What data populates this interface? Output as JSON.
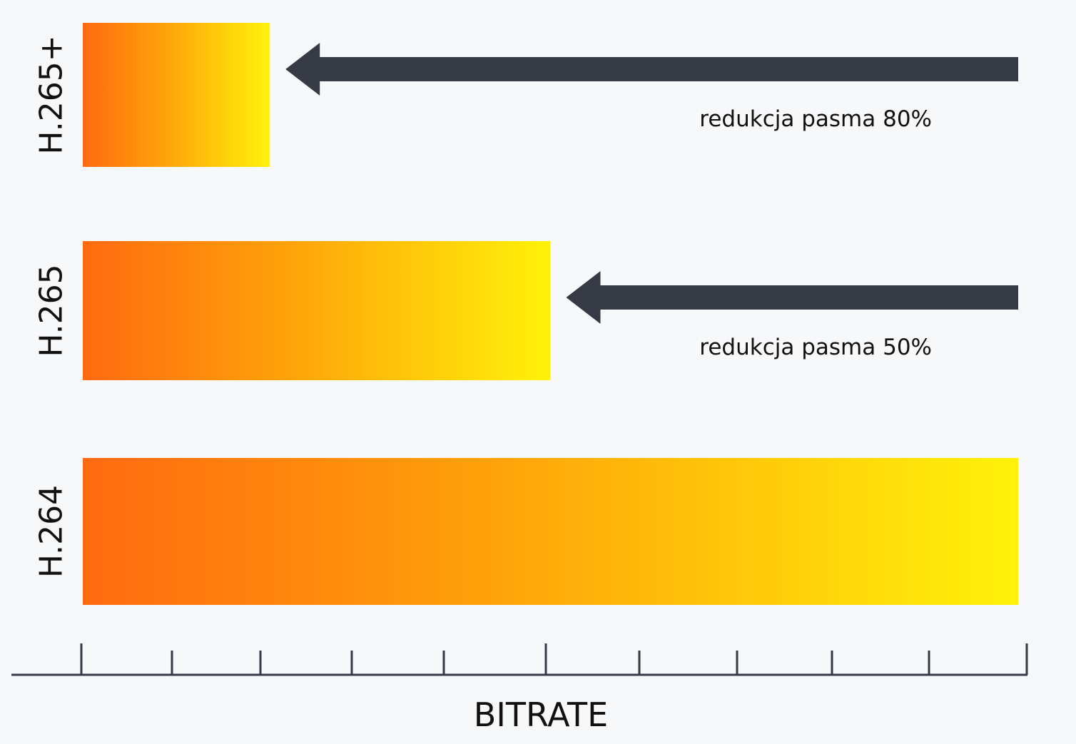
{
  "chart_data": {
    "type": "bar",
    "orientation": "horizontal",
    "categories": [
      "H.265+",
      "H.265",
      "H.264"
    ],
    "values": [
      20,
      50,
      100
    ],
    "value_unit": "% of H.264 bitrate",
    "xlabel": "BITRATE",
    "ylabel": "",
    "xlim": [
      0,
      100
    ],
    "tick_labels_shown": false,
    "grid": false,
    "legend": "none",
    "annotations": [
      {
        "category": "H.265+",
        "text": "redukcja pasma 80%",
        "arrow": "right-to-left"
      },
      {
        "category": "H.265",
        "text": "redukcja pasma 50%",
        "arrow": "right-to-left"
      }
    ]
  },
  "colors": {
    "background": "#f7f8fa",
    "bar_gradient_start": "#ff6a10",
    "bar_gradient_mid": "#ffa40a",
    "bar_gradient_end": "#fff20a",
    "arrow": "#363a44",
    "axis": "#363a44",
    "text": "#111111"
  }
}
